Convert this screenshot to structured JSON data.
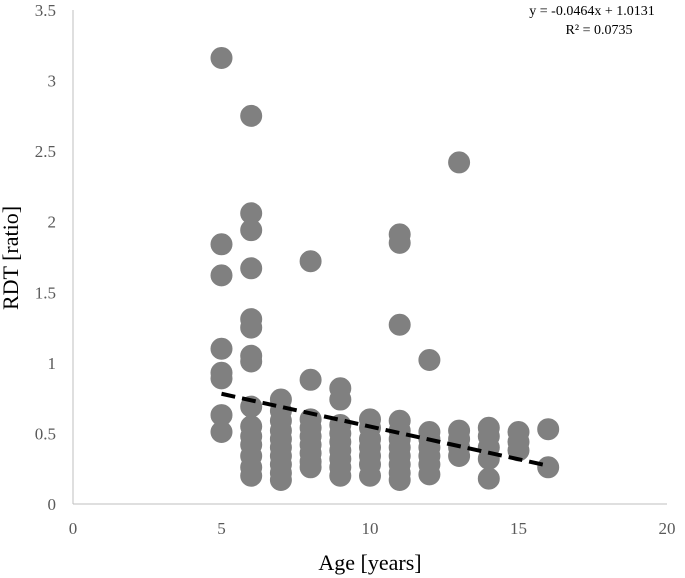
{
  "chart_data": {
    "type": "scatter",
    "title": "",
    "xlabel": "Age [years]",
    "ylabel": "RDT [ratio]",
    "xlim": [
      0,
      20
    ],
    "ylim": [
      0,
      3.5
    ],
    "x_ticks": [
      "0",
      "5",
      "10",
      "15",
      "20"
    ],
    "y_ticks": [
      "0",
      "0.5",
      "1",
      "1.5",
      "2",
      "2.5",
      "3",
      "3.5"
    ],
    "grid": false,
    "point_color": "#808080",
    "trendline": {
      "equation": "y = -0.0464x + 1.0131",
      "r_squared": "R² = 0.0735",
      "slope": -0.0464,
      "intercept": 1.0131,
      "x_range": [
        5,
        16
      ],
      "color": "#000000",
      "style": "dashed"
    },
    "series": [
      {
        "name": "RDT",
        "points": [
          [
            5,
            3.16
          ],
          [
            5,
            1.84
          ],
          [
            5,
            1.62
          ],
          [
            5,
            1.1
          ],
          [
            5,
            0.93
          ],
          [
            5,
            0.89
          ],
          [
            5,
            0.63
          ],
          [
            5,
            0.51
          ],
          [
            6,
            2.75
          ],
          [
            6,
            2.06
          ],
          [
            6,
            1.94
          ],
          [
            6,
            1.67
          ],
          [
            6,
            1.31
          ],
          [
            6,
            1.25
          ],
          [
            6,
            1.05
          ],
          [
            6,
            1.01
          ],
          [
            6,
            0.69
          ],
          [
            6,
            0.55
          ],
          [
            6,
            0.48
          ],
          [
            6,
            0.42
          ],
          [
            6,
            0.34
          ],
          [
            6,
            0.26
          ],
          [
            6,
            0.2
          ],
          [
            7,
            0.74
          ],
          [
            7,
            0.66
          ],
          [
            7,
            0.59
          ],
          [
            7,
            0.52
          ],
          [
            7,
            0.46
          ],
          [
            7,
            0.4
          ],
          [
            7,
            0.34
          ],
          [
            7,
            0.28
          ],
          [
            7,
            0.22
          ],
          [
            7,
            0.17
          ],
          [
            8,
            1.72
          ],
          [
            8,
            0.88
          ],
          [
            8,
            0.6
          ],
          [
            8,
            0.54
          ],
          [
            8,
            0.48
          ],
          [
            8,
            0.42
          ],
          [
            8,
            0.36
          ],
          [
            8,
            0.3
          ],
          [
            8,
            0.26
          ],
          [
            9,
            0.82
          ],
          [
            9,
            0.74
          ],
          [
            9,
            0.56
          ],
          [
            9,
            0.5
          ],
          [
            9,
            0.44
          ],
          [
            9,
            0.38
          ],
          [
            9,
            0.32
          ],
          [
            9,
            0.26
          ],
          [
            9,
            0.2
          ],
          [
            10,
            0.6
          ],
          [
            10,
            0.54
          ],
          [
            10,
            0.46
          ],
          [
            10,
            0.4
          ],
          [
            10,
            0.34
          ],
          [
            10,
            0.28
          ],
          [
            10,
            0.2
          ],
          [
            11,
            1.91
          ],
          [
            11,
            1.85
          ],
          [
            11,
            1.27
          ],
          [
            11,
            0.59
          ],
          [
            11,
            0.52
          ],
          [
            11,
            0.46
          ],
          [
            11,
            0.4
          ],
          [
            11,
            0.34
          ],
          [
            11,
            0.28
          ],
          [
            11,
            0.22
          ],
          [
            11,
            0.17
          ],
          [
            12,
            1.02
          ],
          [
            12,
            0.51
          ],
          [
            12,
            0.46
          ],
          [
            12,
            0.4
          ],
          [
            12,
            0.34
          ],
          [
            12,
            0.28
          ],
          [
            12,
            0.21
          ],
          [
            13,
            2.42
          ],
          [
            13,
            0.52
          ],
          [
            13,
            0.46
          ],
          [
            13,
            0.4
          ],
          [
            13,
            0.34
          ],
          [
            14,
            0.54
          ],
          [
            14,
            0.48
          ],
          [
            14,
            0.4
          ],
          [
            14,
            0.32
          ],
          [
            14,
            0.18
          ],
          [
            15,
            0.51
          ],
          [
            15,
            0.44
          ],
          [
            15,
            0.38
          ],
          [
            16,
            0.53
          ],
          [
            16,
            0.26
          ]
        ]
      }
    ]
  }
}
